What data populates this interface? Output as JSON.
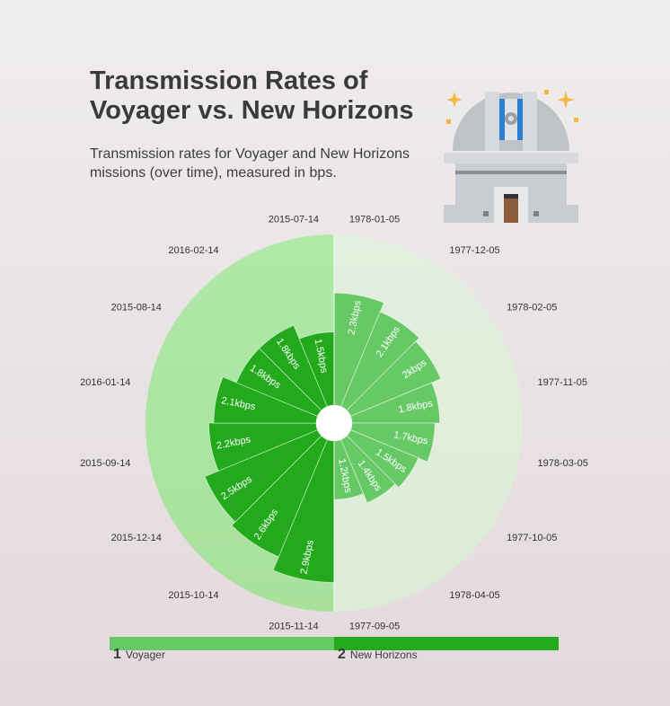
{
  "header": {
    "title": "Transmission Rates of Voyager vs. New Horizons",
    "subtitle": "Transmission rates for Voyager and New Horizons missions (over time), measured in bps."
  },
  "colors": {
    "voyager": "#66c966",
    "new_horizons": "#22aa1c",
    "voyager_background": "#dcecd6",
    "new_horizons_background": "#b0e8a8"
  },
  "legend": [
    {
      "number": "1",
      "label": "Voyager"
    },
    {
      "number": "2",
      "label": "New Horizons"
    }
  ],
  "chart_data": {
    "type": "polar-bar",
    "unit": "kbps",
    "series": [
      {
        "name": "Voyager",
        "categories": [
          "1978-01-05",
          "1977-12-05",
          "1978-02-05",
          "1977-11-05",
          "1978-03-05",
          "1977-10-05",
          "1978-04-05",
          "1977-09-05"
        ],
        "values": [
          2.3,
          2.1,
          2,
          1.8,
          1.7,
          1.5,
          1.4,
          1.2
        ],
        "labels": [
          "2.3kbps",
          "2.1kbps",
          "2kbps",
          "1.8kbps",
          "1.7kbps",
          "1.5kbps",
          "1.4kbps",
          "1.2kbps"
        ]
      },
      {
        "name": "New Horizons",
        "categories": [
          "2015-11-14",
          "2015-10-14",
          "2015-12-14",
          "2015-09-14",
          "2016-01-14",
          "2015-08-14",
          "2016-02-14",
          "2015-07-14"
        ],
        "values": [
          2.9,
          2.6,
          2.5,
          2.2,
          2.1,
          1.8,
          1.8,
          1.5
        ],
        "labels": [
          "2.9kbps",
          "2.6kbps",
          "2.5kbps",
          "2.2kbps",
          "2.1kbps",
          "1.8kbps",
          "1.8kbps",
          "1.5kbps"
        ]
      }
    ],
    "rmax": 3.5
  }
}
